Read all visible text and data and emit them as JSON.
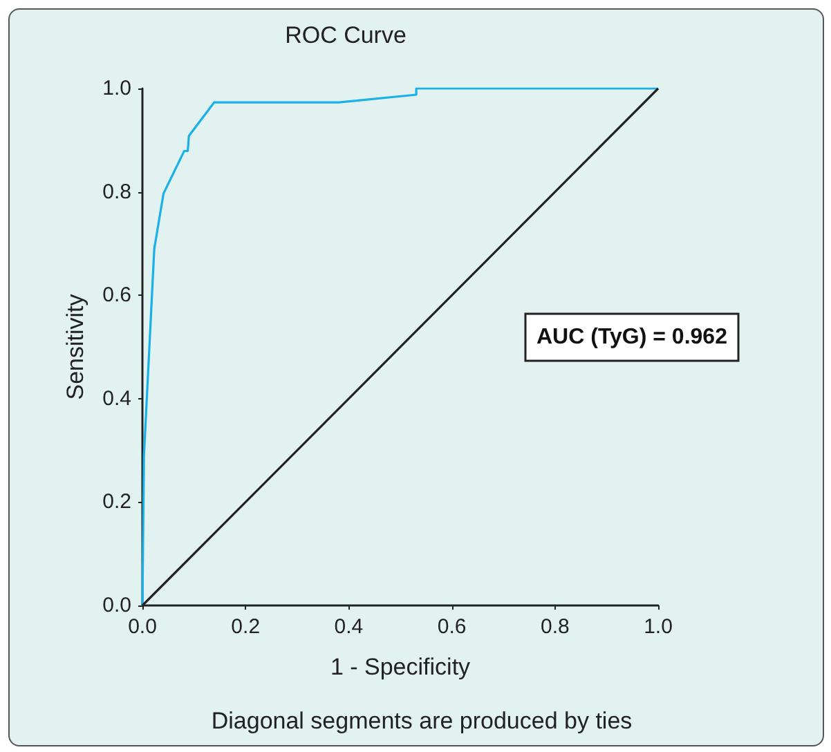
{
  "chart_data": {
    "type": "line",
    "title": "ROC Curve",
    "xlabel": "1 - Specificity",
    "ylabel": "Sensitivity",
    "annotations": [
      "AUC (TyG) = 0.962",
      "Diagonal segments are produced by ties"
    ],
    "series": [
      {
        "color": "#1ab0e8",
        "x": [
          0,
          0.003,
          0.023,
          0.041,
          0.081,
          0.088,
          0.09,
          0.139,
          0.381,
          0.531,
          0.531,
          1
        ],
        "values": [
          0,
          0.29,
          0.69,
          0.797,
          0.879,
          0.879,
          0.908,
          0.973,
          0.973,
          0.988,
          1,
          1
        ]
      },
      {
        "color": "#222222",
        "x": [
          0,
          1
        ],
        "values": [
          0,
          1
        ]
      }
    ],
    "xlim": [
      0,
      1
    ],
    "ylim": [
      0,
      1
    ],
    "xticks": [
      {
        "value": 0,
        "label": "0.0"
      },
      {
        "value": 0.2,
        "label": "0.2"
      },
      {
        "value": 0.4,
        "label": "0.4"
      },
      {
        "value": 0.6,
        "label": "0.6"
      },
      {
        "value": 0.8,
        "label": "0.8"
      },
      {
        "value": 1,
        "label": "1.0"
      }
    ],
    "yticks": [
      {
        "value": 0,
        "label": "0.0"
      },
      {
        "value": 0.2,
        "label": "0.2"
      },
      {
        "value": 0.4,
        "label": "0.4"
      },
      {
        "value": 0.6,
        "label": "0.6"
      },
      {
        "value": 0.8,
        "label": "0.8"
      },
      {
        "value": 1,
        "label": "1.0"
      }
    ],
    "grid": false,
    "marker": "none",
    "line_style": "solid"
  }
}
